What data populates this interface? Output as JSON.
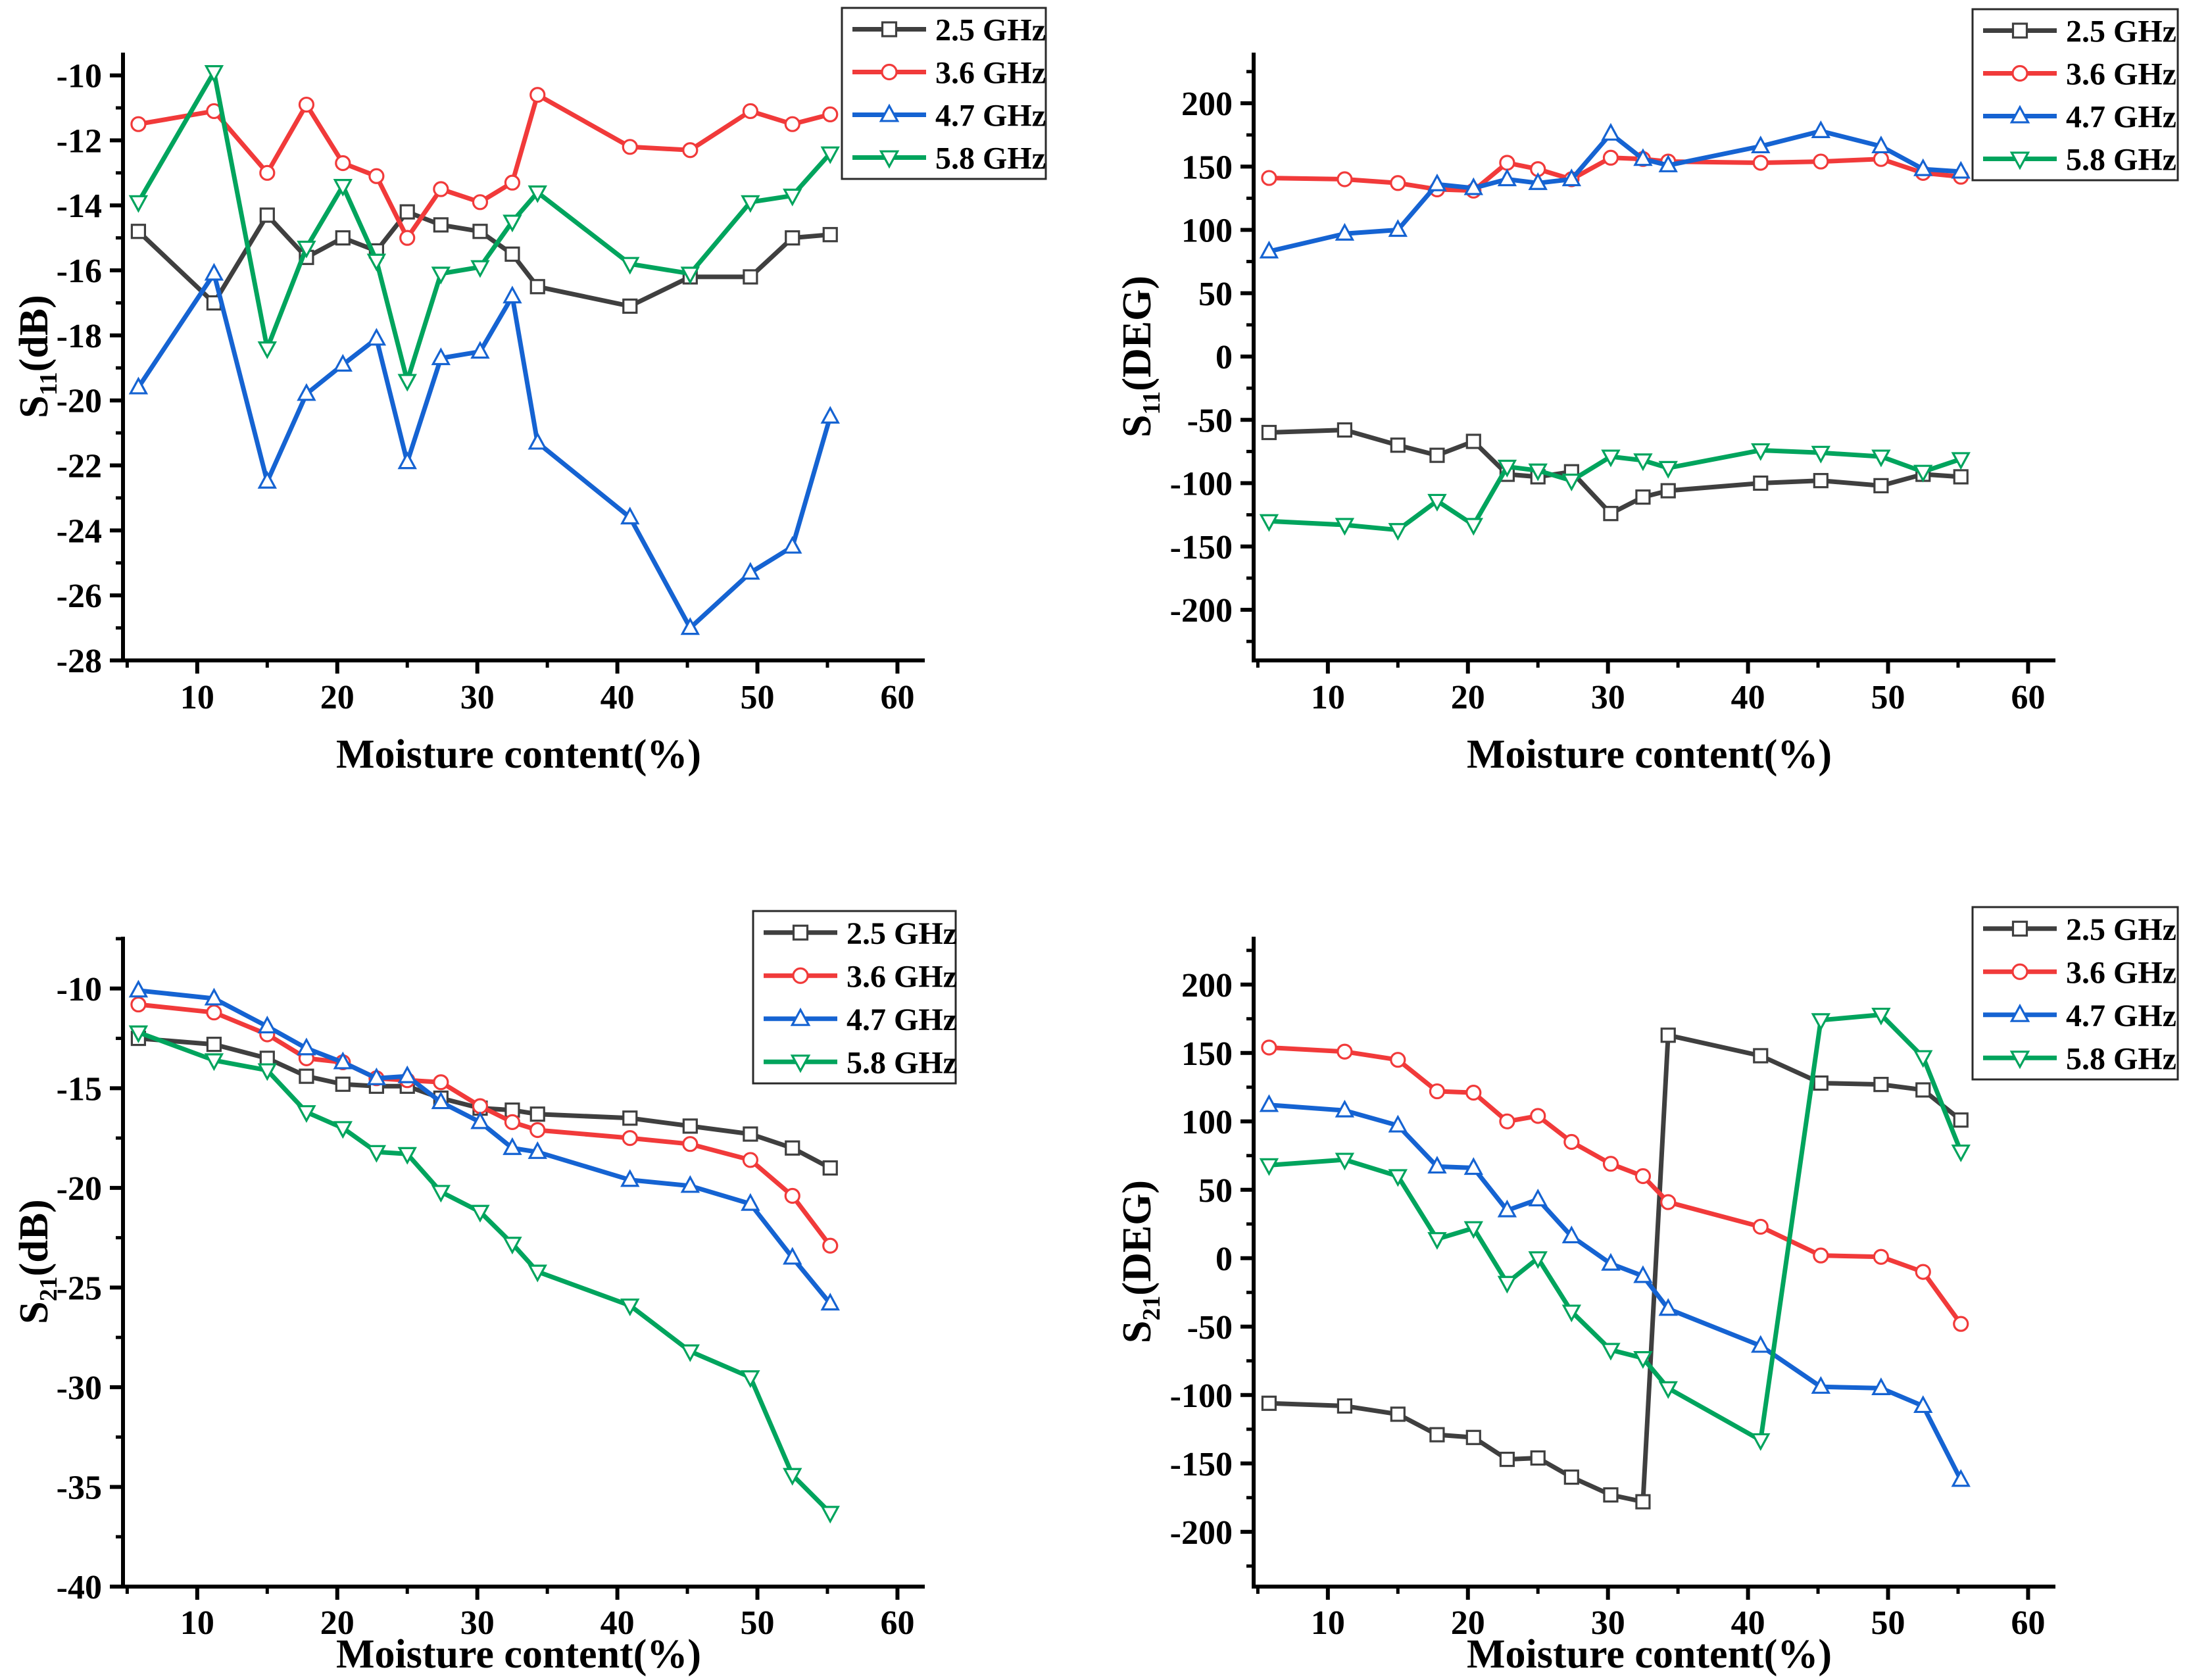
{
  "figure": {
    "background": "#ffffff",
    "axis_color": "#000000",
    "xlabel": "Moisture content(%)",
    "x_values": [
      5.8,
      11.2,
      15,
      17.8,
      20.4,
      22.8,
      25,
      27.4,
      30.2,
      32.5,
      34.3,
      40.9,
      45.2,
      49.5,
      52.5,
      55.2
    ],
    "x_ticks": [
      10,
      20,
      30,
      40,
      50,
      60
    ],
    "x_minor_ticks": [
      5,
      15,
      25,
      35,
      45,
      55
    ]
  },
  "legend": {
    "labels": [
      "2.5 GHz",
      "3.6 GHz",
      "4.7 GHz",
      "5.8 GHz"
    ],
    "colors": [
      "#3F3F3F",
      "#F13A3A",
      "#1563D2",
      "#00A45D"
    ],
    "markers": [
      "square-open",
      "circle-open",
      "triangle-up-open",
      "triangle-down-open"
    ]
  },
  "chart_data": [
    {
      "type": "line",
      "title": "",
      "position": "top-left",
      "xlabel": "Moisture content(%)",
      "ylabel": {
        "prefix": "S",
        "sub": "11",
        "suffix": "(dB)"
      },
      "xlim": [
        4.7,
        61.2
      ],
      "ylim": [
        -28,
        -9.3
      ],
      "yticks": [
        -28,
        -26,
        -24,
        -22,
        -20,
        -18,
        -16,
        -14,
        -12,
        -10
      ],
      "yminor_step": 1,
      "grid": false,
      "legend_position": "top-right",
      "x": [
        5.8,
        11.2,
        15,
        17.8,
        20.4,
        22.8,
        25,
        27.4,
        30.2,
        32.5,
        34.3,
        40.9,
        45.2,
        49.5,
        52.5,
        55.2
      ],
      "series": [
        {
          "name": "2.5 GHz",
          "color": "#3F3F3F",
          "marker": "square-open",
          "values": [
            -14.8,
            -17.0,
            -14.3,
            -15.6,
            -15.0,
            -15.4,
            -14.2,
            -14.6,
            -14.8,
            -15.5,
            -16.5,
            -17.1,
            -16.2,
            -16.2,
            -15.0,
            -14.9
          ]
        },
        {
          "name": "3.6 GHz",
          "color": "#F13A3A",
          "marker": "circle-open",
          "values": [
            -11.5,
            -11.1,
            -13.0,
            -10.9,
            -12.7,
            -13.1,
            -15.0,
            -13.5,
            -13.9,
            -13.3,
            -10.6,
            -12.2,
            -12.3,
            -11.1,
            -11.5,
            -11.2
          ]
        },
        {
          "name": "4.7 GHz",
          "color": "#1563D2",
          "marker": "triangle-up-open",
          "values": [
            -19.6,
            -16.1,
            -22.5,
            -19.8,
            -18.9,
            -18.1,
            -21.9,
            -18.7,
            -18.5,
            -16.8,
            -21.3,
            -23.6,
            -27.0,
            -25.3,
            -24.5,
            -20.5
          ]
        },
        {
          "name": "5.8 GHz",
          "color": "#00A45D",
          "marker": "triangle-down-open",
          "values": [
            -13.9,
            -9.9,
            -18.4,
            -15.3,
            -13.4,
            -15.7,
            -19.4,
            -16.1,
            -15.9,
            -14.5,
            -13.6,
            -15.8,
            -16.1,
            -13.9,
            -13.7,
            -12.4
          ]
        }
      ]
    },
    {
      "type": "line",
      "title": "",
      "position": "top-right",
      "xlabel": "Moisture content(%)",
      "ylabel": {
        "prefix": "S",
        "sub": "11",
        "suffix": "(DEG)"
      },
      "xlim": [
        4.7,
        61.2
      ],
      "ylim": [
        -240,
        240
      ],
      "yticks": [
        -200,
        -150,
        -100,
        -50,
        0,
        50,
        100,
        150,
        200
      ],
      "yminor_step": 25,
      "grid": false,
      "legend_position": "top-right",
      "x": [
        5.8,
        11.2,
        15,
        17.8,
        20.4,
        22.8,
        25,
        27.4,
        30.2,
        32.5,
        34.3,
        40.9,
        45.2,
        49.5,
        52.5,
        55.2
      ],
      "series": [
        {
          "name": "2.5 GHz",
          "color": "#3F3F3F",
          "marker": "square-open",
          "values": [
            -60,
            -58,
            -70,
            -78,
            -67,
            -93,
            -95,
            -91,
            -124,
            -111,
            -106,
            -100,
            -98,
            -102,
            -93,
            -95
          ]
        },
        {
          "name": "3.6 GHz",
          "color": "#F13A3A",
          "marker": "circle-open",
          "values": [
            141,
            140,
            137,
            132,
            131,
            153,
            148,
            140,
            157,
            156,
            154,
            153,
            154,
            156,
            145,
            142
          ]
        },
        {
          "name": "4.7 GHz",
          "color": "#1563D2",
          "marker": "triangle-up-open",
          "values": [
            83,
            97,
            100,
            136,
            133,
            140,
            137,
            140,
            176,
            156,
            151,
            166,
            178,
            166,
            148,
            146
          ]
        },
        {
          "name": "5.8 GHz",
          "color": "#00A45D",
          "marker": "triangle-down-open",
          "values": [
            -130,
            -133,
            -137,
            -114,
            -133,
            -87,
            -90,
            -98,
            -79,
            -82,
            -88,
            -74,
            -76,
            -79,
            -91,
            -81
          ]
        }
      ]
    },
    {
      "type": "line",
      "title": "",
      "position": "bottom-left",
      "xlabel": "Moisture content(%)",
      "ylabel": {
        "prefix": "S",
        "sub": "21",
        "suffix": "(dB)"
      },
      "xlim": [
        4.7,
        61.2
      ],
      "ylim": [
        -40,
        -7.4
      ],
      "yticks": [
        -40,
        -35,
        -30,
        -25,
        -20,
        -15,
        -10
      ],
      "yminor_step": 2.5,
      "grid": false,
      "legend_position": "top-right",
      "x": [
        5.8,
        11.2,
        15,
        17.8,
        20.4,
        22.8,
        25,
        27.4,
        30.2,
        32.5,
        34.3,
        40.9,
        45.2,
        49.5,
        52.5,
        55.2
      ],
      "series": [
        {
          "name": "2.5 GHz",
          "color": "#3F3F3F",
          "marker": "square-open",
          "values": [
            -12.5,
            -12.8,
            -13.5,
            -14.4,
            -14.8,
            -14.9,
            -14.9,
            -15.5,
            -16.0,
            -16.1,
            -16.3,
            -16.5,
            -16.9,
            -17.3,
            -18.0,
            -19.0
          ]
        },
        {
          "name": "3.6 GHz",
          "color": "#F13A3A",
          "marker": "circle-open",
          "values": [
            -10.8,
            -11.2,
            -12.3,
            -13.5,
            -13.7,
            -14.5,
            -14.6,
            -14.7,
            -15.9,
            -16.7,
            -17.1,
            -17.5,
            -17.8,
            -18.6,
            -20.4,
            -22.9
          ]
        },
        {
          "name": "4.7 GHz",
          "color": "#1563D2",
          "marker": "triangle-up-open",
          "values": [
            -10.1,
            -10.5,
            -11.9,
            -13.0,
            -13.7,
            -14.5,
            -14.4,
            -15.7,
            -16.7,
            -18.0,
            -18.2,
            -19.6,
            -19.9,
            -20.8,
            -23.5,
            -25.8
          ]
        },
        {
          "name": "5.8 GHz",
          "color": "#00A45D",
          "marker": "triangle-down-open",
          "values": [
            -12.2,
            -13.6,
            -14.1,
            -16.2,
            -17.0,
            -18.2,
            -18.3,
            -20.2,
            -21.2,
            -22.8,
            -24.2,
            -25.9,
            -28.2,
            -29.5,
            -34.4,
            -36.3
          ]
        }
      ]
    },
    {
      "type": "line",
      "title": "",
      "position": "bottom-right",
      "xlabel": "Moisture content(%)",
      "ylabel": {
        "prefix": "S",
        "sub": "21",
        "suffix": "(DEG)"
      },
      "xlim": [
        4.7,
        61.2
      ],
      "ylim": [
        -240,
        235
      ],
      "yticks": [
        -200,
        -150,
        -100,
        -50,
        0,
        50,
        100,
        150,
        200
      ],
      "yminor_step": 25,
      "grid": false,
      "legend_position": "top-right",
      "x": [
        5.8,
        11.2,
        15,
        17.8,
        20.4,
        22.8,
        25,
        27.4,
        30.2,
        32.5,
        34.3,
        40.9,
        45.2,
        49.5,
        52.5,
        55.2
      ],
      "series": [
        {
          "name": "2.5 GHz",
          "color": "#3F3F3F",
          "marker": "square-open",
          "values": [
            -106,
            -108,
            -114,
            -129,
            -131,
            -147,
            -146,
            -160,
            -173,
            -178,
            163,
            148,
            128,
            127,
            123,
            101
          ]
        },
        {
          "name": "3.6 GHz",
          "color": "#F13A3A",
          "marker": "circle-open",
          "values": [
            154,
            151,
            145,
            122,
            121,
            100,
            104,
            85,
            69,
            60,
            41,
            23,
            2,
            1,
            -10,
            -48
          ]
        },
        {
          "name": "4.7 GHz",
          "color": "#1563D2",
          "marker": "triangle-up-open",
          "values": [
            112,
            108,
            97,
            67,
            66,
            35,
            43,
            16,
            -4,
            -13,
            -37,
            -64,
            -94,
            -95,
            -108,
            -162
          ]
        },
        {
          "name": "5.8 GHz",
          "color": "#00A45D",
          "marker": "triangle-down-open",
          "values": [
            68,
            72,
            60,
            14,
            22,
            -18,
            0,
            -39,
            -67,
            -73,
            -95,
            -133,
            174,
            178,
            147,
            78
          ]
        }
      ]
    }
  ]
}
